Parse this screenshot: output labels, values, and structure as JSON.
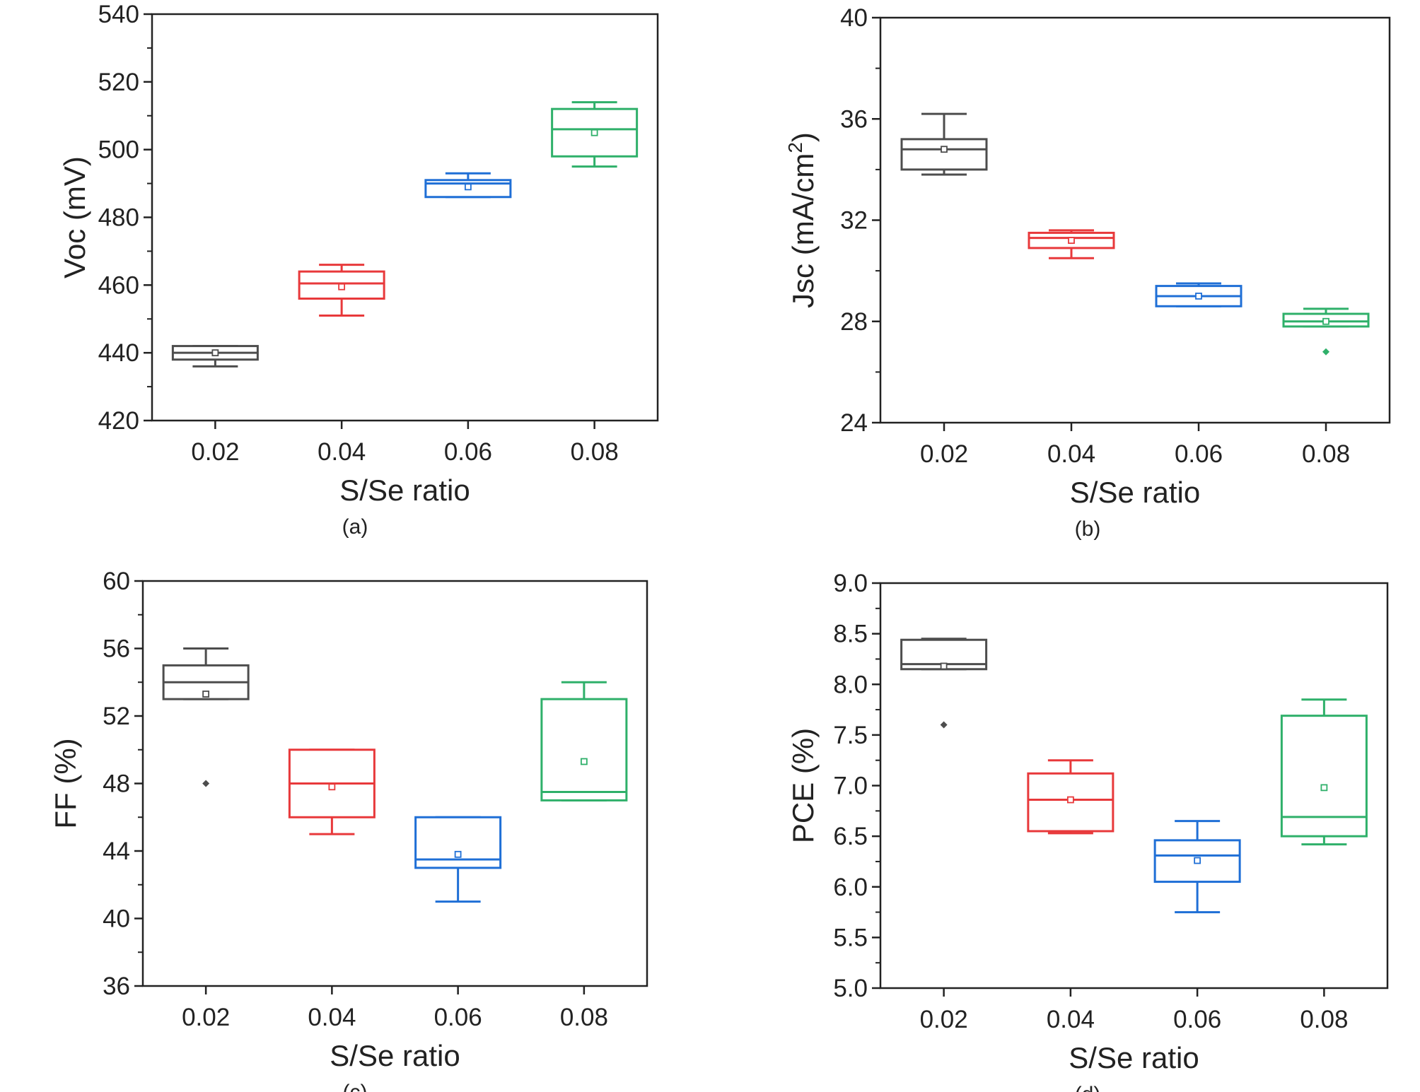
{
  "chart_data": [
    {
      "type": "box",
      "panel_label": "(a)",
      "xlabel": "S/Se ratio",
      "ylabel": "Voc (mV)",
      "categories": [
        "0.02",
        "0.04",
        "0.06",
        "0.08"
      ],
      "ylim": [
        420,
        540
      ],
      "yticks": [
        "420",
        "440",
        "460",
        "480",
        "500",
        "520",
        "540"
      ],
      "ytick_values": [
        420,
        440,
        460,
        480,
        500,
        520,
        540
      ],
      "colors": [
        "#4d4d4d",
        "#e8393b",
        "#1f6fd6",
        "#2fb06a"
      ],
      "boxes": [
        {
          "category": "0.02",
          "whisker_low": 436,
          "q1": 438,
          "median": 440,
          "q3": 442,
          "whisker_high": 442,
          "mean": 440,
          "outliers": []
        },
        {
          "category": "0.04",
          "whisker_low": 451,
          "q1": 456,
          "median": 460.5,
          "q3": 464,
          "whisker_high": 466,
          "mean": 459.5,
          "outliers": []
        },
        {
          "category": "0.06",
          "whisker_low": 486,
          "q1": 486,
          "median": 490,
          "q3": 491,
          "whisker_high": 493,
          "mean": 489,
          "outliers": []
        },
        {
          "category": "0.08",
          "whisker_low": 495,
          "q1": 498,
          "median": 506,
          "q3": 512,
          "whisker_high": 514,
          "mean": 505,
          "outliers": []
        }
      ]
    },
    {
      "type": "box",
      "panel_label": "(b)",
      "xlabel": "S/Se ratio",
      "ylabel": "Jsc (mA/cm",
      "ylabel_sup": "2",
      "ylabel_close": ")",
      "categories": [
        "0.02",
        "0.04",
        "0.06",
        "0.08"
      ],
      "ylim": [
        24,
        40
      ],
      "yticks": [
        "24",
        "28",
        "32",
        "36",
        "40"
      ],
      "ytick_values": [
        24,
        28,
        32,
        36,
        40
      ],
      "colors": [
        "#4d4d4d",
        "#e8393b",
        "#1f6fd6",
        "#2fb06a"
      ],
      "boxes": [
        {
          "category": "0.02",
          "whisker_low": 33.8,
          "q1": 34.0,
          "median": 34.8,
          "q3": 35.2,
          "whisker_high": 36.2,
          "mean": 34.8,
          "outliers": []
        },
        {
          "category": "0.04",
          "whisker_low": 30.5,
          "q1": 30.9,
          "median": 31.3,
          "q3": 31.5,
          "whisker_high": 31.6,
          "mean": 31.2,
          "outliers": []
        },
        {
          "category": "0.06",
          "whisker_low": 28.6,
          "q1": 28.6,
          "median": 29.0,
          "q3": 29.4,
          "whisker_high": 29.5,
          "mean": 29.0,
          "outliers": []
        },
        {
          "category": "0.08",
          "whisker_low": 27.8,
          "q1": 27.8,
          "median": 28.0,
          "q3": 28.3,
          "whisker_high": 28.5,
          "mean": 28.0,
          "outliers": [
            26.8
          ]
        }
      ]
    },
    {
      "type": "box",
      "panel_label": "(c)",
      "xlabel": "S/Se ratio",
      "ylabel": "FF (%)",
      "categories": [
        "0.02",
        "0.04",
        "0.06",
        "0.08"
      ],
      "ylim": [
        36,
        60
      ],
      "yticks": [
        "36",
        "40",
        "44",
        "48",
        "52",
        "56",
        "60"
      ],
      "ytick_values": [
        36,
        40,
        44,
        48,
        52,
        56,
        60
      ],
      "colors": [
        "#4d4d4d",
        "#e8393b",
        "#1f6fd6",
        "#2fb06a"
      ],
      "boxes": [
        {
          "category": "0.02",
          "whisker_low": 53,
          "q1": 53,
          "median": 54,
          "q3": 55,
          "whisker_high": 56,
          "mean": 53.3,
          "outliers": [
            48
          ]
        },
        {
          "category": "0.04",
          "whisker_low": 45,
          "q1": 46,
          "median": 48,
          "q3": 50,
          "whisker_high": 50,
          "mean": 47.8,
          "outliers": []
        },
        {
          "category": "0.06",
          "whisker_low": 41,
          "q1": 43,
          "median": 43.5,
          "q3": 46,
          "whisker_high": 46,
          "mean": 43.8,
          "outliers": []
        },
        {
          "category": "0.08",
          "whisker_low": 47,
          "q1": 47,
          "median": 47.5,
          "q3": 53,
          "whisker_high": 54,
          "mean": 49.3,
          "outliers": []
        }
      ]
    },
    {
      "type": "box",
      "panel_label": "(d)",
      "xlabel": "S/Se ratio",
      "ylabel": "PCE (%)",
      "categories": [
        "0.02",
        "0.04",
        "0.06",
        "0.08"
      ],
      "ylim": [
        5.0,
        9.0
      ],
      "yticks": [
        "5.0",
        "5.5",
        "6.0",
        "6.5",
        "7.0",
        "7.5",
        "8.0",
        "8.5",
        "9.0"
      ],
      "ytick_values": [
        5.0,
        5.5,
        6.0,
        6.5,
        7.0,
        7.5,
        8.0,
        8.5,
        9.0
      ],
      "colors": [
        "#4d4d4d",
        "#e8393b",
        "#1f6fd6",
        "#2fb06a"
      ],
      "boxes": [
        {
          "category": "0.02",
          "whisker_low": 8.15,
          "q1": 8.15,
          "median": 8.2,
          "q3": 8.44,
          "whisker_high": 8.45,
          "mean": 8.18,
          "outliers": [
            7.6
          ]
        },
        {
          "category": "0.04",
          "whisker_low": 6.53,
          "q1": 6.55,
          "median": 6.86,
          "q3": 7.12,
          "whisker_high": 7.25,
          "mean": 6.86,
          "outliers": []
        },
        {
          "category": "0.06",
          "whisker_low": 5.75,
          "q1": 6.05,
          "median": 6.31,
          "q3": 6.46,
          "whisker_high": 6.65,
          "mean": 6.26,
          "outliers": []
        },
        {
          "category": "0.08",
          "whisker_low": 6.42,
          "q1": 6.5,
          "median": 6.69,
          "q3": 7.69,
          "whisker_high": 7.85,
          "mean": 6.98,
          "outliers": []
        }
      ]
    }
  ]
}
